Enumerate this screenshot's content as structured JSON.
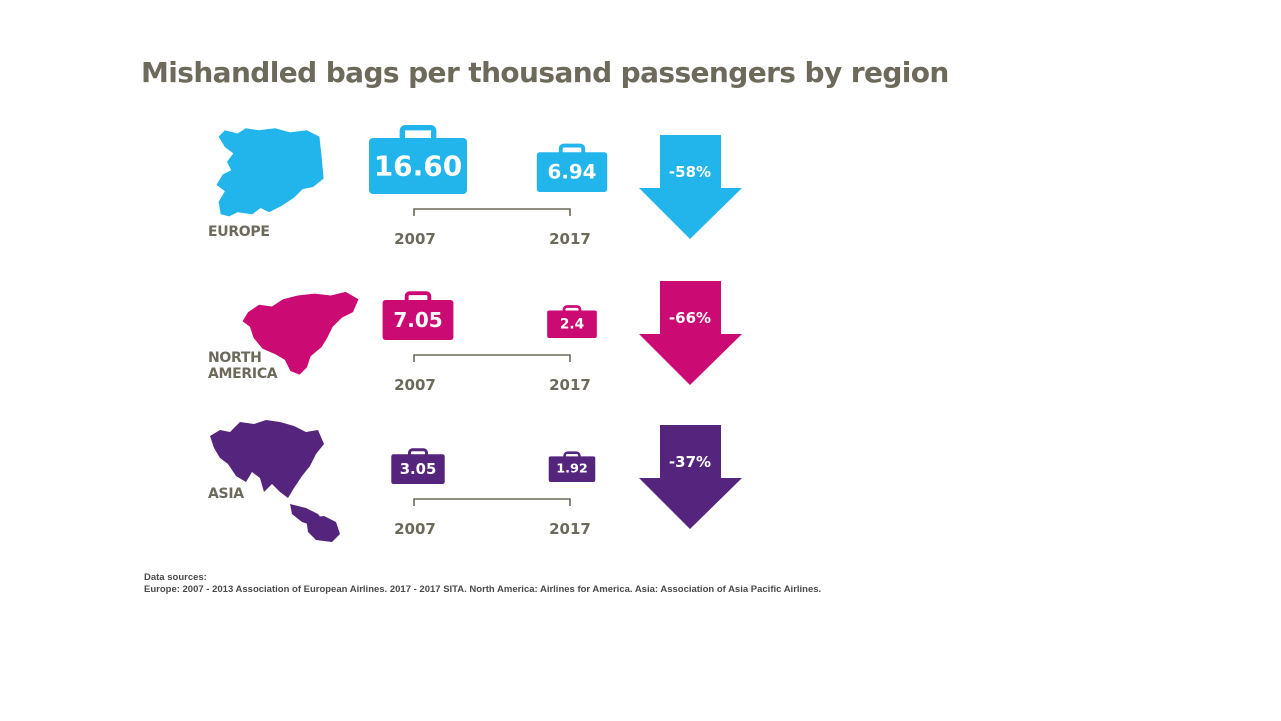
{
  "title": "Mishandled bags per thousand passengers by region",
  "sources": {
    "heading": "Data sources:",
    "text": "Europe: 2007 - 2013 Association of European Airlines. 2017 - 2017 SITA. North America: Airlines for America. Asia: Association of Asia Pacific Airlines."
  },
  "colors": {
    "label": "#6d6a5c",
    "europe": "#22b5eb",
    "north_america": "#cc0a73",
    "asia": "#55257e"
  },
  "chart_data": {
    "type": "table",
    "title": "Mishandled bags per thousand passengers by region",
    "years": [
      "2007",
      "2017"
    ],
    "regions": [
      {
        "key": "europe",
        "label_lines": [
          "EUROPE"
        ],
        "icon": "europe-map-icon",
        "color": "#22b5eb",
        "values": [
          16.6,
          6.94
        ],
        "value_labels": [
          "16.60",
          "6.94"
        ],
        "change_label": "-58%",
        "change": -58
      },
      {
        "key": "north_america",
        "label_lines": [
          "NORTH",
          "AMERICA"
        ],
        "icon": "north-america-map-icon",
        "color": "#cc0a73",
        "values": [
          7.05,
          2.4
        ],
        "value_labels": [
          "7.05",
          "2.4"
        ],
        "change_label": "-66%",
        "change": -66
      },
      {
        "key": "asia",
        "label_lines": [
          "ASIA"
        ],
        "icon": "asia-map-icon",
        "color": "#55257e",
        "values": [
          3.05,
          1.92
        ],
        "value_labels": [
          "3.05",
          "1.92"
        ],
        "change_label": "-37%",
        "change": -37
      }
    ]
  }
}
